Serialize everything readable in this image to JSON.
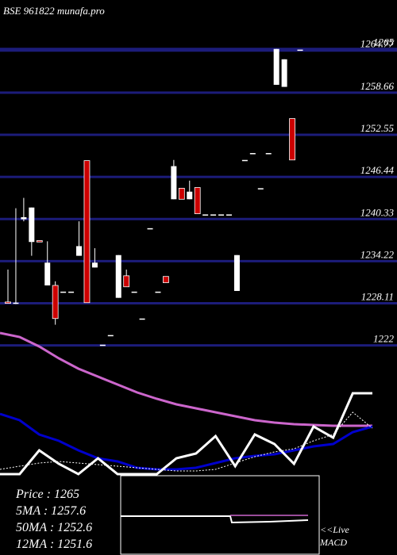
{
  "chart_data": [
    {
      "type": "candlestick",
      "title": "BSE 961822 munafa.pro",
      "categories": [
        null,
        null,
        null,
        null,
        null,
        null,
        null,
        null,
        null,
        null,
        null,
        null,
        null,
        null,
        null,
        null,
        null,
        null,
        null,
        null,
        null,
        null,
        null,
        null,
        null,
        null,
        null,
        null,
        null,
        null,
        null,
        null,
        null,
        null,
        null,
        null,
        null,
        null
      ],
      "open": [
        1228.3,
        1228.1,
        1240.3,
        1237.0,
        1237.2,
        1230.7,
        1230.7,
        1229.8,
        1229.8,
        1235.0,
        1248.8,
        1233.3,
        1222.1,
        1223.5,
        1228.9,
        1232.1,
        1229.8,
        1225.9,
        1239.0,
        1229.8,
        1232.0,
        1243.2,
        1244.8,
        1243.2,
        1244.9,
        1241.0,
        1241.0,
        1241.0,
        1241.0,
        1229.9,
        1248.9,
        1249.9,
        1244.8,
        1249.9,
        1259.8,
        1259.5,
        1254.9,
        1264.9
      ],
      "high": [
        1233.0,
        1241.9,
        1243.4,
        1242.0,
        1237.2,
        1237.1,
        1231.3,
        1229.8,
        1229.8,
        1240.0,
        1248.8,
        1236.1,
        1222.1,
        1223.5,
        1235.1,
        1233.0,
        1229.8,
        1225.9,
        1239.0,
        1229.8,
        1232.0,
        1248.9,
        1244.8,
        1245.9,
        1244.9,
        1241.0,
        1241.0,
        1241.0,
        1241.0,
        1235.1,
        1248.9,
        1249.9,
        1244.8,
        1249.9,
        1265.0,
        1263.5,
        1254.9,
        1264.9
      ],
      "low": [
        1228.1,
        1228.0,
        1240.0,
        1235.0,
        1237.0,
        1230.7,
        1225.0,
        1229.8,
        1229.8,
        1235.0,
        1228.2,
        1233.3,
        1222.1,
        1223.5,
        1228.9,
        1230.5,
        1229.8,
        1225.9,
        1239.0,
        1229.8,
        1231.1,
        1243.2,
        1243.2,
        1243.2,
        1241.1,
        1241.0,
        1241.0,
        1241.0,
        1241.0,
        1229.9,
        1248.9,
        1249.9,
        1244.8,
        1249.9,
        1259.8,
        1259.5,
        1248.9,
        1264.9
      ],
      "close": [
        1228.1,
        1228.2,
        1240.6,
        1242.0,
        1237.0,
        1234.0,
        1225.9,
        1229.8,
        1229.8,
        1236.4,
        1228.2,
        1234.0,
        1222.1,
        1223.5,
        1235.1,
        1230.5,
        1229.8,
        1225.9,
        1239.0,
        1229.8,
        1231.1,
        1248.0,
        1243.2,
        1244.3,
        1241.1,
        1241.0,
        1241.0,
        1241.0,
        1241.0,
        1235.1,
        1248.9,
        1249.9,
        1244.8,
        1249.9,
        1265.0,
        1263.5,
        1248.9,
        1264.9
      ],
      "up_color": "#ffffff",
      "down_color": "#cc0000",
      "grid_color": "#1c1c7a",
      "ylim": [
        1221.5,
        1272.1
      ],
      "yticks": [
        1265,
        1264.77,
        1258.66,
        1252.55,
        1246.44,
        1240.33,
        1234.22,
        1228.11,
        1222
      ],
      "grid": true
    },
    {
      "type": "line",
      "categories": [
        null,
        null,
        null,
        null,
        null,
        null,
        null,
        null,
        null,
        null,
        null,
        null,
        null,
        null,
        null,
        null,
        null,
        null,
        null,
        null
      ],
      "ylim": [
        0,
        100
      ],
      "series": [
        {
          "color": "#cc66cc",
          "values": [
            90,
            87.5,
            81.5,
            74,
            67.5,
            62.5,
            57.5,
            52.5,
            48.5,
            45,
            42.5,
            40,
            37.5,
            35,
            33.5,
            32.5,
            32,
            31.5,
            31.5,
            31.5
          ]
        },
        {
          "color": "#0000cc",
          "values": [
            39,
            35,
            26,
            22,
            16,
            11,
            9,
            5,
            4,
            4,
            5,
            8,
            11,
            12.5,
            13.5,
            16,
            18.5,
            20,
            27.5,
            31
          ]
        },
        {
          "color": "#ffffff",
          "dotted": true,
          "values": [
            4,
            6,
            8,
            9,
            8,
            7,
            6,
            5,
            4,
            3,
            3,
            4,
            8,
            12,
            15,
            17,
            22,
            26,
            40,
            30
          ]
        },
        {
          "color": "#ffffff",
          "values": [
            1,
            1,
            16,
            7.5,
            1,
            11,
            1,
            1,
            1,
            11,
            14,
            25,
            6,
            26,
            20,
            7.5,
            31,
            24,
            52,
            52
          ]
        }
      ]
    }
  ],
  "info": [
    "Price  : 1265",
    "5MA : 1257.6",
    "50MA : 1252.6",
    "12MA : 1251.6"
  ],
  "macd_label": [
    "<<Live",
    "MACD"
  ]
}
